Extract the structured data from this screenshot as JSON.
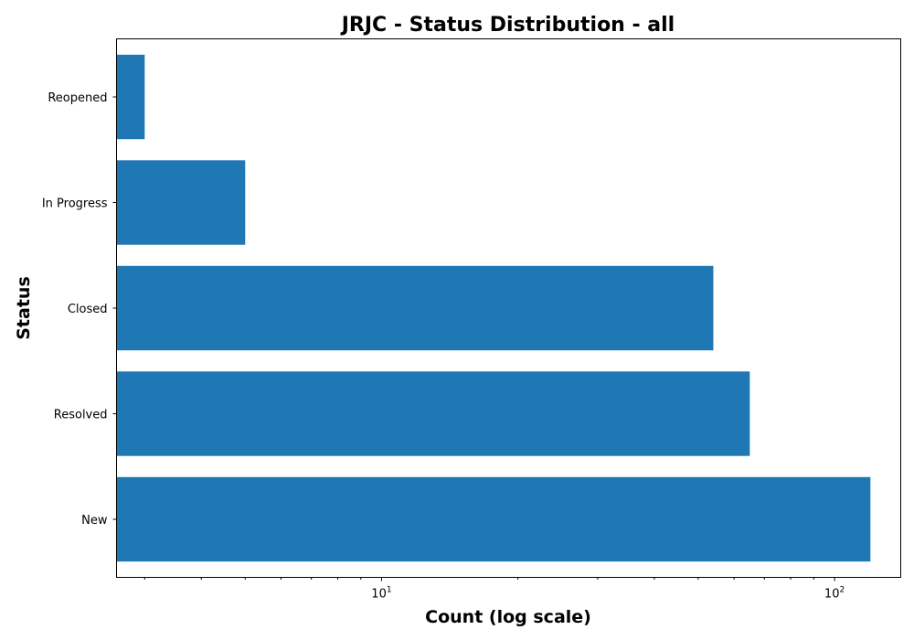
{
  "chart_data": {
    "type": "bar",
    "orientation": "horizontal",
    "title": "JRJC - Status Distribution - all",
    "xlabel": "Count (log scale)",
    "ylabel": "Status",
    "x_scale": "log",
    "xlim": [
      2.6,
      140
    ],
    "x_ticks": [
      {
        "value": 10,
        "base": "10",
        "exponent": "1"
      },
      {
        "value": 100,
        "base": "10",
        "exponent": "2"
      }
    ],
    "categories": [
      "New",
      "Resolved",
      "Closed",
      "In Progress",
      "Reopened"
    ],
    "values": [
      120,
      65,
      54,
      5,
      3
    ],
    "grid": false,
    "bar_color": "#1f77b4"
  }
}
